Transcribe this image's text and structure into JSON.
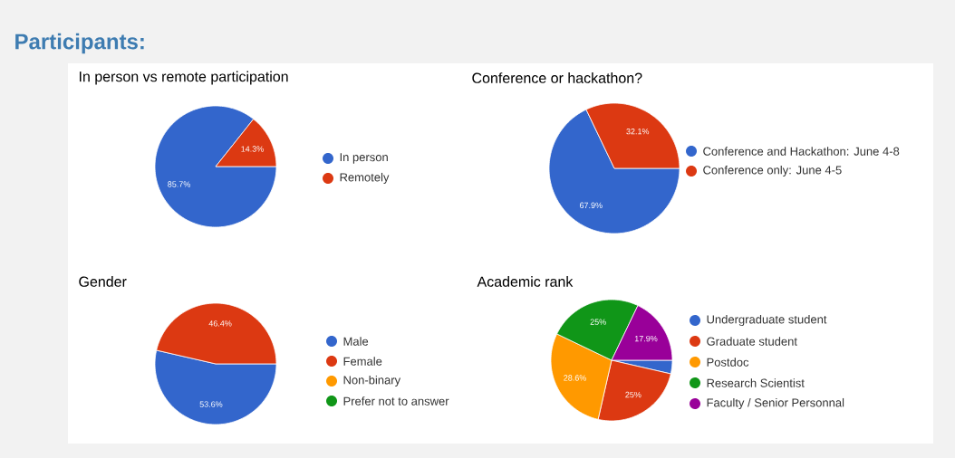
{
  "chart_data": [
    {
      "type": "other",
      "title": "Participants:"
    },
    {
      "type": "pie",
      "title": "In person vs remote participation",
      "categories": [
        "In person",
        "Remotely"
      ],
      "values": [
        85.7,
        14.3
      ],
      "colors": [
        "#3366cc",
        "#dc3912"
      ],
      "value_labels": [
        "85.7%",
        "14.3%"
      ],
      "legend": "right"
    },
    {
      "type": "pie",
      "title": "Conference or hackathon?",
      "categories": [
        "Conference and Hackathon: June 4-8",
        "Conference only: June 4-5"
      ],
      "values": [
        67.9,
        32.1
      ],
      "colors": [
        "#3366cc",
        "#dc3912"
      ],
      "value_labels": [
        "67.9%",
        "32.1%"
      ],
      "legend": "right"
    },
    {
      "type": "pie",
      "title": "Gender",
      "categories": [
        "Male",
        "Female",
        "Non-binary",
        "Prefer not to answer"
      ],
      "values": [
        53.6,
        46.4,
        0,
        0
      ],
      "colors": [
        "#3366cc",
        "#dc3912",
        "#ff9900",
        "#109618"
      ],
      "value_labels": [
        "53.6%",
        "46.4%",
        null,
        null
      ],
      "legend": "right"
    },
    {
      "type": "pie",
      "title": "Academic rank",
      "categories": [
        "Undergraduate student",
        "Graduate student",
        "Postdoc",
        "Research Scientist",
        "Faculty / Senior Personnal"
      ],
      "values": [
        3.6,
        25,
        28.6,
        25,
        17.9
      ],
      "colors": [
        "#3366cc",
        "#dc3912",
        "#ff9900",
        "#109618",
        "#990099"
      ],
      "value_labels": [
        null,
        "25%",
        "28.6%",
        "25%",
        "17.9%"
      ],
      "legend": "right"
    }
  ]
}
